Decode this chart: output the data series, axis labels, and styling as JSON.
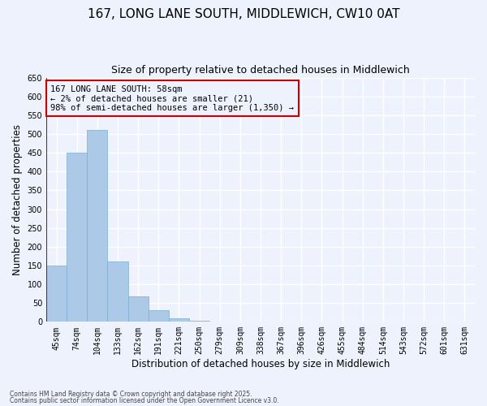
{
  "title": "167, LONG LANE SOUTH, MIDDLEWICH, CW10 0AT",
  "subtitle": "Size of property relative to detached houses in Middlewich",
  "xlabel": "Distribution of detached houses by size in Middlewich",
  "ylabel": "Number of detached properties",
  "categories": [
    "45sqm",
    "74sqm",
    "104sqm",
    "133sqm",
    "162sqm",
    "191sqm",
    "221sqm",
    "250sqm",
    "279sqm",
    "309sqm",
    "338sqm",
    "367sqm",
    "396sqm",
    "426sqm",
    "455sqm",
    "484sqm",
    "514sqm",
    "543sqm",
    "572sqm",
    "601sqm",
    "631sqm"
  ],
  "bar_values": [
    150,
    450,
    510,
    160,
    67,
    30,
    10,
    3,
    0,
    0,
    0,
    0,
    0,
    0,
    0,
    0,
    0,
    0,
    0,
    0,
    0
  ],
  "bar_color": "#adc9e8",
  "bar_edgecolor": "#7aaed0",
  "ylim": [
    0,
    650
  ],
  "yticks": [
    0,
    50,
    100,
    150,
    200,
    250,
    300,
    350,
    400,
    450,
    500,
    550,
    600,
    650
  ],
  "property_line_color": "#cc0000",
  "annotation_title": "167 LONG LANE SOUTH: 58sqm",
  "annotation_line1": "← 2% of detached houses are smaller (21)",
  "annotation_line2": "98% of semi-detached houses are larger (1,350) →",
  "annotation_box_edgecolor": "#cc0000",
  "footnote1": "Contains HM Land Registry data © Crown copyright and database right 2025.",
  "footnote2": "Contains public sector information licensed under the Open Government Licence v3.0.",
  "background_color": "#eef2fc",
  "grid_color": "#ffffff",
  "title_fontsize": 11,
  "subtitle_fontsize": 9,
  "tick_fontsize": 7,
  "ylabel_fontsize": 8.5,
  "xlabel_fontsize": 8.5,
  "footnote_fontsize": 5.5,
  "annotation_fontsize": 7.5
}
